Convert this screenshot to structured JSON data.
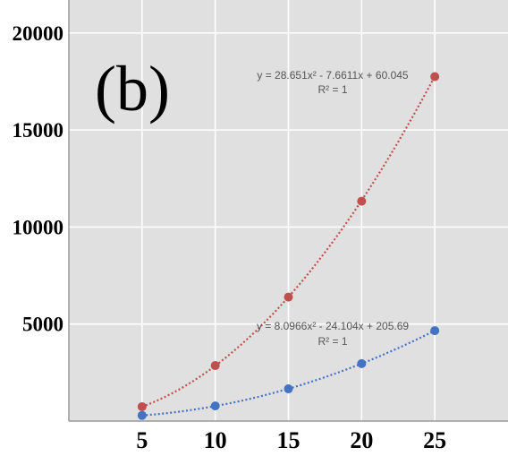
{
  "panel_label": "(b)",
  "chart_data": {
    "type": "scatter",
    "title": "",
    "xlabel": "",
    "ylabel": "",
    "xlim": [
      0,
      30
    ],
    "ylim": [
      0,
      21700
    ],
    "x_ticks": [
      5,
      10,
      15,
      20,
      25
    ],
    "x_tick_labels": [
      "5",
      "10",
      "15",
      "20",
      "25"
    ],
    "y_ticks": [
      5000,
      10000,
      15000,
      20000
    ],
    "y_tick_labels": [
      "5000",
      "10000",
      "15000",
      "20000"
    ],
    "grid": true,
    "legend": "none",
    "series": [
      {
        "color": "#c0504d",
        "x": [
          5,
          10,
          15,
          20,
          25
        ],
        "y": [
          740,
          2860,
          6390,
          11330,
          17750
        ],
        "trendline": {
          "type": "polynomial-2",
          "coefficients": [
            28.651,
            -7.6611,
            60.045
          ],
          "equation": "y = 28.651x² - 7.6611x + 60.045",
          "r2": "R² = 1"
        }
      },
      {
        "color": "#4472c4",
        "x": [
          5,
          10,
          15,
          20,
          25
        ],
        "y": [
          290,
          780,
          1660,
          2960,
          4660
        ],
        "trendline": {
          "type": "polynomial-2",
          "coefficients": [
            8.0966,
            -24.104,
            205.69
          ],
          "equation": "y = 8.0966x² - 24.104x + 205.69",
          "r2": "R² = 1"
        }
      }
    ]
  }
}
